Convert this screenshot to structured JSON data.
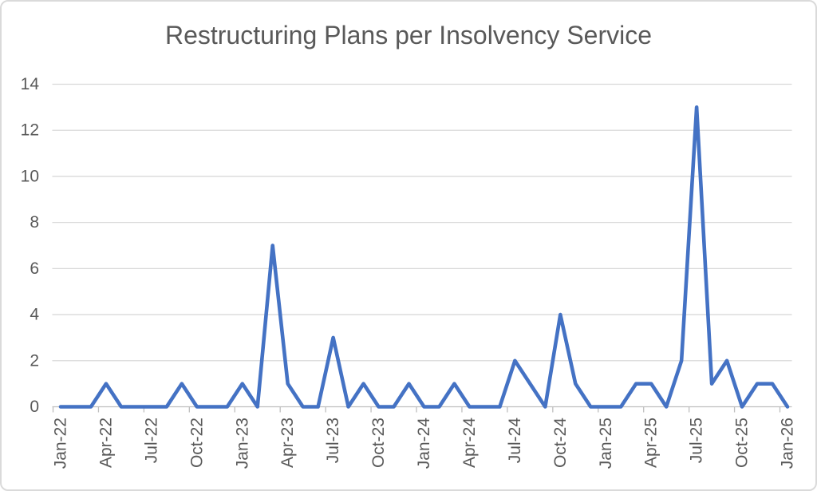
{
  "window": {
    "background_color": "#FFFFFF",
    "border_color": "#DADADA"
  },
  "chart_data": {
    "type": "line",
    "title": "Restructuring Plans per Insolvency Service",
    "xlabel": "",
    "ylabel": "",
    "ylim": [
      0,
      14
    ],
    "y_ticks": [
      0,
      2,
      4,
      6,
      8,
      10,
      12,
      14
    ],
    "x_label_every": 3,
    "grid": "horizontal",
    "legend": "none",
    "line_color": "#4472C4",
    "gridline_color": "#D9D9D9",
    "axis_color": "#BFBFBF",
    "label_color": "#595959",
    "title_color": "#595959",
    "categories": [
      "Jan-22",
      "Feb-22",
      "Mar-22",
      "Apr-22",
      "May-22",
      "Jun-22",
      "Jul-22",
      "Aug-22",
      "Sep-22",
      "Oct-22",
      "Nov-22",
      "Dec-22",
      "Jan-23",
      "Feb-23",
      "Mar-23",
      "Apr-23",
      "May-23",
      "Jun-23",
      "Jul-23",
      "Aug-23",
      "Sep-23",
      "Oct-23",
      "Nov-23",
      "Dec-23",
      "Jan-24",
      "Feb-24",
      "Mar-24",
      "Apr-24",
      "May-24",
      "Jun-24",
      "Jul-24",
      "Aug-24",
      "Sep-24",
      "Oct-24",
      "Nov-24",
      "Dec-24",
      "Jan-25",
      "Feb-25",
      "Mar-25",
      "Apr-25",
      "May-25",
      "Jun-25",
      "Jul-25",
      "Aug-25",
      "Sep-25",
      "Oct-25",
      "Nov-25",
      "Dec-25",
      "Jan-26"
    ],
    "values": [
      0,
      0,
      0,
      1,
      0,
      0,
      0,
      0,
      1,
      0,
      0,
      0,
      1,
      0,
      7,
      1,
      0,
      0,
      3,
      0,
      1,
      0,
      0,
      1,
      0,
      0,
      1,
      0,
      0,
      0,
      2,
      1,
      0,
      4,
      1,
      0,
      0,
      0,
      1,
      1,
      0,
      2,
      13,
      1,
      2,
      0,
      1,
      1,
      0
    ]
  }
}
